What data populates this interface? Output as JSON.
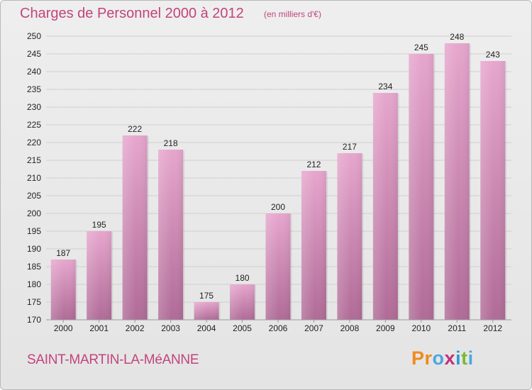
{
  "header": {
    "title": "Charges de Personnel 2000 à 2012",
    "subtitle": "(en milliers d'€)"
  },
  "footer": {
    "commune": "SAINT-MARTIN-LA-MéANNE",
    "logo_text": "Proxiti",
    "logo_colors": [
      "#f08a1c",
      "#f08a1c",
      "#4ca6e0",
      "#c0307a",
      "#2e9ad8",
      "#7cb82f",
      "#4ca6e0"
    ]
  },
  "colors": {
    "accent": "#c2447b",
    "bar_top": "#e6a6cd",
    "bar_bottom": "#b06b97",
    "grid": "#cfcfcf",
    "axis_text": "#222222"
  },
  "chart_data": {
    "type": "bar",
    "categories": [
      "2000",
      "2001",
      "2002",
      "2003",
      "2004",
      "2005",
      "2006",
      "2007",
      "2008",
      "2009",
      "2010",
      "2011",
      "2012"
    ],
    "values": [
      187,
      195,
      222,
      218,
      175,
      180,
      200,
      212,
      217,
      234,
      245,
      248,
      243
    ],
    "title": "Charges de Personnel 2000 à 2012",
    "subtitle": "(en milliers d'€)",
    "ylim": [
      170,
      250
    ],
    "yticks": [
      170,
      175,
      180,
      185,
      190,
      195,
      200,
      205,
      210,
      215,
      220,
      225,
      230,
      235,
      240,
      245,
      250
    ],
    "grid": true,
    "data_labels": true
  }
}
